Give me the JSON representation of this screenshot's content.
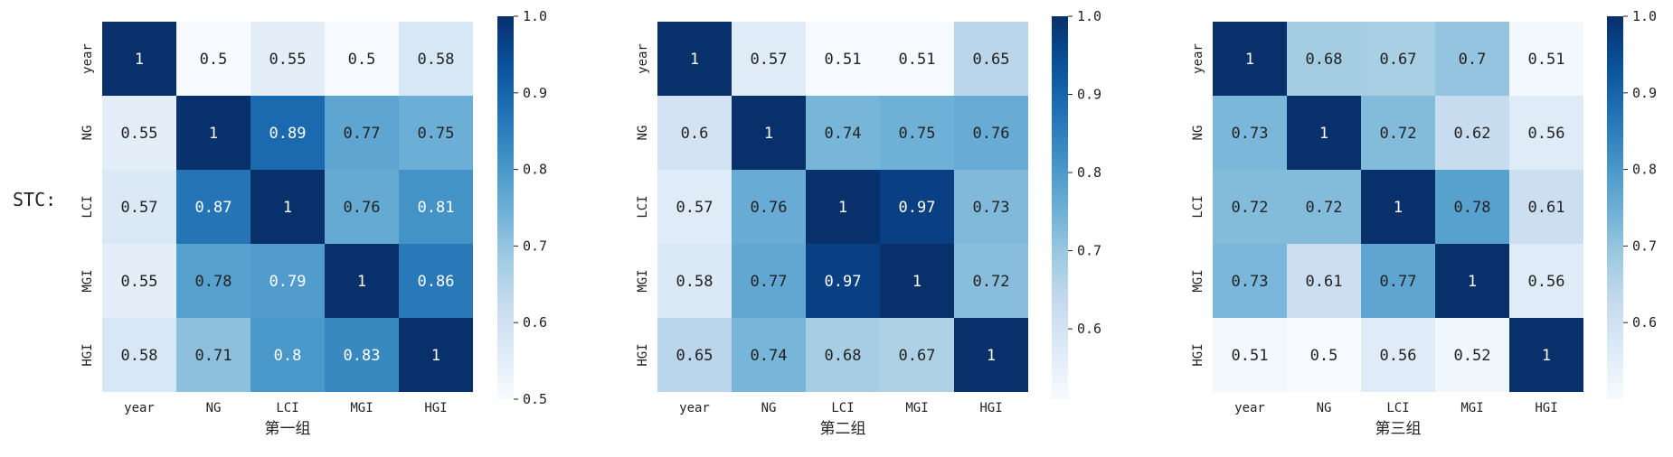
{
  "row_title": "STC:",
  "colormap": {
    "name": "Blues",
    "low_color": "#f7fbff",
    "high_color": "#08306b"
  },
  "chart_data": [
    {
      "type": "heatmap",
      "xlabel": "第一组",
      "labels": [
        "year",
        "NG",
        "LCI",
        "MGI",
        "HGI"
      ],
      "values": [
        [
          1,
          0.5,
          0.55,
          0.5,
          0.58
        ],
        [
          0.55,
          1,
          0.89,
          0.77,
          0.75
        ],
        [
          0.57,
          0.87,
          1,
          0.76,
          0.81
        ],
        [
          0.55,
          0.78,
          0.79,
          1,
          0.86
        ],
        [
          0.58,
          0.71,
          0.8,
          0.83,
          1
        ]
      ],
      "annotations": [
        [
          "1",
          "0.5",
          "0.55",
          "0.5",
          "0.58"
        ],
        [
          "0.55",
          "1",
          "0.89",
          "0.77",
          "0.75"
        ],
        [
          "0.57",
          "0.87",
          "1",
          "0.76",
          "0.81"
        ],
        [
          "0.55",
          "0.78",
          "0.79",
          "1",
          "0.86"
        ],
        [
          "0.58",
          "0.71",
          "0.8",
          "0.83",
          "1"
        ]
      ],
      "color_range": [
        0.5,
        1.0
      ],
      "colorbar_ticks": [
        "0.5",
        "0.6",
        "0.7",
        "0.8",
        "0.9",
        "1.0"
      ]
    },
    {
      "type": "heatmap",
      "xlabel": "第二组",
      "labels": [
        "year",
        "NG",
        "LCI",
        "MGI",
        "HGI"
      ],
      "values": [
        [
          1,
          0.57,
          0.51,
          0.51,
          0.65
        ],
        [
          0.6,
          1,
          0.74,
          0.75,
          0.76
        ],
        [
          0.57,
          0.76,
          1,
          0.97,
          0.73
        ],
        [
          0.58,
          0.77,
          0.97,
          1,
          0.72
        ],
        [
          0.65,
          0.74,
          0.68,
          0.67,
          1
        ]
      ],
      "annotations": [
        [
          "1",
          "0.57",
          "0.51",
          "0.51",
          "0.65"
        ],
        [
          "0.6",
          "1",
          "0.74",
          "0.75",
          "0.76"
        ],
        [
          "0.57",
          "0.76",
          "1",
          "0.97",
          "0.73"
        ],
        [
          "0.58",
          "0.77",
          "0.97",
          "1",
          "0.72"
        ],
        [
          "0.65",
          "0.74",
          "0.68",
          "0.67",
          "1"
        ]
      ],
      "color_range": [
        0.51,
        1.0
      ],
      "colorbar_ticks": [
        "0.6",
        "0.7",
        "0.8",
        "0.9",
        "1.0"
      ]
    },
    {
      "type": "heatmap",
      "xlabel": "第三组",
      "labels": [
        "year",
        "NG",
        "LCI",
        "MGI",
        "HGI"
      ],
      "values": [
        [
          1,
          0.68,
          0.67,
          0.7,
          0.51
        ],
        [
          0.73,
          1,
          0.72,
          0.62,
          0.56
        ],
        [
          0.72,
          0.72,
          1,
          0.78,
          0.61
        ],
        [
          0.73,
          0.61,
          0.77,
          1,
          0.56
        ],
        [
          0.51,
          0.5,
          0.56,
          0.52,
          1
        ]
      ],
      "annotations": [
        [
          "1",
          "0.68",
          "0.67",
          "0.7",
          "0.51"
        ],
        [
          "0.73",
          "1",
          "0.72",
          "0.62",
          "0.56"
        ],
        [
          "0.72",
          "0.72",
          "1",
          "0.78",
          "0.61"
        ],
        [
          "0.73",
          "0.61",
          "0.77",
          "1",
          "0.56"
        ],
        [
          "0.51",
          "0.5",
          "0.56",
          "0.52",
          "1"
        ]
      ],
      "color_range": [
        0.5,
        1.0
      ],
      "colorbar_ticks": [
        "0.6",
        "0.7",
        "0.8",
        "0.9",
        "1.0"
      ]
    }
  ]
}
